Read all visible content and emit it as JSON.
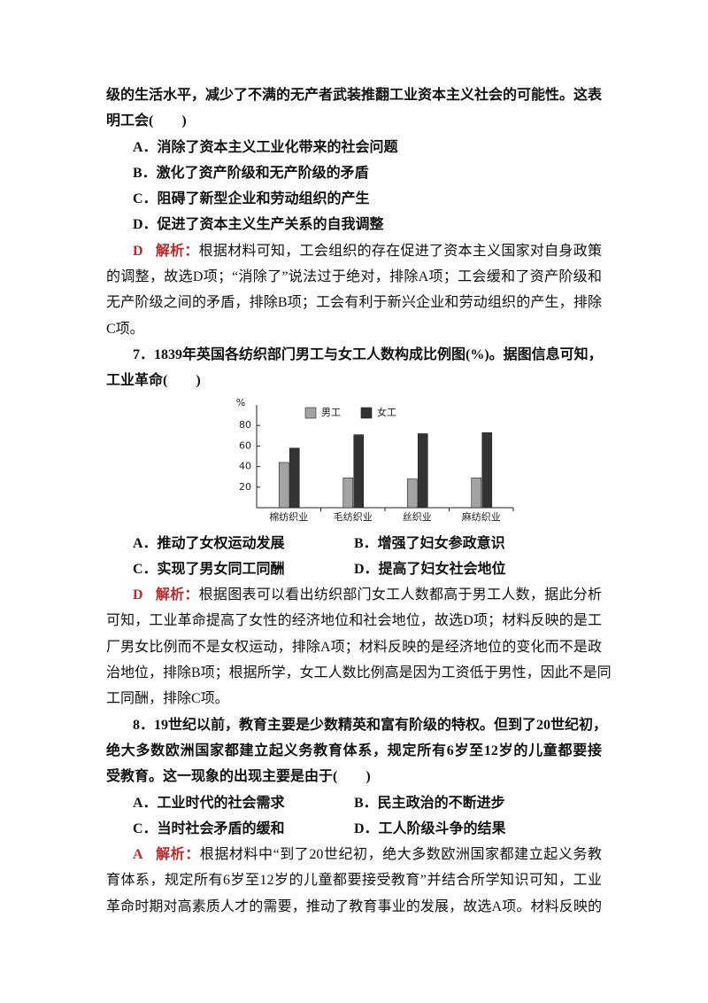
{
  "q6": {
    "stem": [
      "级的生活水平，减少了不满的无产者武装推翻工业资本主义社会的可能性。这表",
      "明工会(　　)"
    ],
    "options": [
      "A．消除了资本主义工业化带来的社会问题",
      "B．激化了资产阶级和无产阶级的矛盾",
      "C．阻碍了新型企业和劳动组织的产生",
      "D．促进了资本主义生产关系的自我调整"
    ],
    "answer": {
      "key": "D",
      "label": "解析：",
      "lines": [
        "根据材料可知，工会组织的存在促进了资本主义国家对自身政策",
        "的调整，故选D项；“消除了”说法过于绝对，排除A项；工会缓和了资产阶级和",
        "无产阶级之间的矛盾，排除B项；工会有利于新兴企业和劳动组织的产生，排除",
        "C项。"
      ]
    }
  },
  "q7": {
    "stem": [
      "7．1839年英国各纺织部门男工与女工人数构成比例图(%)。据图信息可知，",
      "工业革命(　　)"
    ],
    "chart_data": {
      "type": "bar",
      "ylabel": "%",
      "categories": [
        "棉纺织业",
        "毛纺织业",
        "丝织业",
        "麻纺织业"
      ],
      "series": [
        {
          "name": "男工",
          "color": "#a3a3a3",
          "values": [
            44,
            29,
            28,
            29
          ]
        },
        {
          "name": "女工",
          "color": "#333333",
          "values": [
            58,
            71,
            72,
            73
          ]
        }
      ],
      "ylim": [
        0,
        100
      ],
      "yticks": [
        20,
        40,
        60,
        80
      ],
      "legend": "top"
    },
    "options": [
      "A．推动了女权运动发展",
      "B．增强了妇女参政意识",
      "C．实现了男女同工同酬",
      "D．提高了妇女社会地位"
    ],
    "answer": {
      "key": "D",
      "label": "解析：",
      "lines": [
        "根据图表可以看出纺织部门女工人数都高于男工人数，据此分析",
        "可知，工业革命提高了女性的经济地位和社会地位，故选D项；材料反映的是工",
        "厂男女比例而不是女权运动，排除A项；材料反映的是经济地位的变化而不是政",
        "治地位，排除B项；根据所学，女工人数比例高是因为工资低于男性，因此不是同",
        "工同酬，排除C项。"
      ]
    }
  },
  "q8": {
    "stem": [
      "8．19世纪以前，教育主要是少数精英和富有阶级的特权。但到了20世纪初，",
      "绝大多数欧洲国家都建立起义务教育体系，规定所有6岁至12岁的儿童都要接",
      "受教育。这一现象的出现主要是由于(　　)"
    ],
    "options": [
      "A．工业时代的社会需求",
      "B．民主政治的不断进步",
      "C．当时社会矛盾的缓和",
      "D．工人阶级斗争的结果"
    ],
    "answer": {
      "key": "A",
      "label": "解析：",
      "lines": [
        "根据材料中“到了20世纪初，绝大多数欧洲国家都建立起义务教",
        "育体系，规定所有6岁至12岁的儿童都要接受教育”并结合所学知识可知，工业",
        "革命时期对高素质人才的需要，推动了教育事业的发展，故选A项。材料反映的"
      ]
    }
  }
}
